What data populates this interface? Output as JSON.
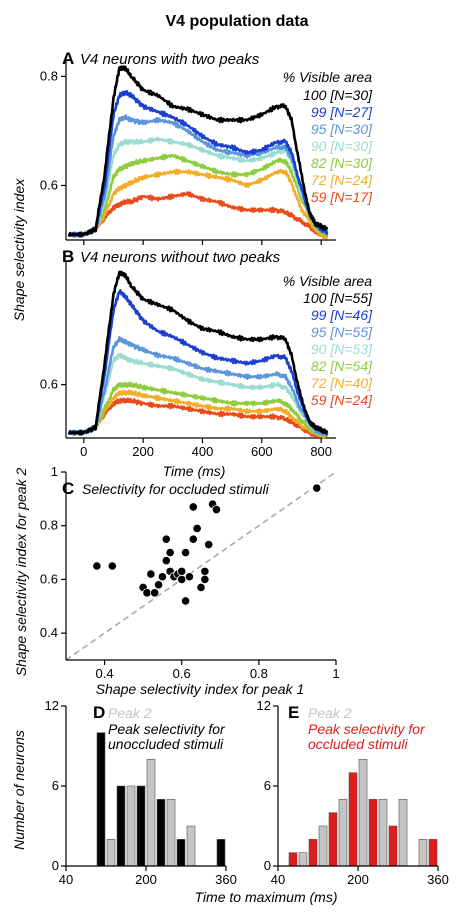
{
  "figure_title": "V4 population data",
  "chart_data": [
    {
      "id": "A",
      "type": "line",
      "panel_letter": "A",
      "title": "V4 neurons with two peaks",
      "ylabel": "Shape selectivity index",
      "xlim": [
        -60,
        850
      ],
      "ylim": [
        0.5,
        0.83
      ],
      "yticks": [
        0.6,
        0.8
      ],
      "xticks": [
        0,
        200,
        400,
        600,
        800
      ],
      "legend_title": "% Visible area",
      "legend_placement": "top-right",
      "series": [
        {
          "name": "100 [N=30]",
          "color": "#000000",
          "x": [
            -50,
            0,
            40,
            70,
            100,
            120,
            140,
            160,
            200,
            250,
            300,
            350,
            400,
            450,
            500,
            550,
            600,
            650,
            680,
            700,
            730,
            760,
            780,
            800,
            820
          ],
          "y": [
            0.51,
            0.51,
            0.52,
            0.62,
            0.76,
            0.815,
            0.815,
            0.8,
            0.775,
            0.765,
            0.745,
            0.74,
            0.73,
            0.72,
            0.72,
            0.72,
            0.73,
            0.745,
            0.745,
            0.72,
            0.63,
            0.55,
            0.53,
            0.525,
            0.52
          ]
        },
        {
          "name": "99 [N=27]",
          "color": "#1a3fd1",
          "x": [
            -50,
            0,
            40,
            70,
            100,
            120,
            140,
            160,
            200,
            250,
            300,
            350,
            400,
            450,
            500,
            550,
            600,
            650,
            680,
            700,
            730,
            760,
            780,
            800,
            820
          ],
          "y": [
            0.51,
            0.51,
            0.52,
            0.6,
            0.73,
            0.765,
            0.77,
            0.765,
            0.745,
            0.735,
            0.725,
            0.71,
            0.69,
            0.675,
            0.67,
            0.66,
            0.665,
            0.68,
            0.68,
            0.66,
            0.6,
            0.55,
            0.53,
            0.52,
            0.515
          ]
        },
        {
          "name": "95 [N=30]",
          "color": "#5d95dd",
          "x": [
            -50,
            0,
            40,
            70,
            100,
            120,
            140,
            160,
            200,
            250,
            300,
            350,
            400,
            450,
            500,
            550,
            600,
            650,
            680,
            700,
            730,
            760,
            780,
            800,
            820
          ],
          "y": [
            0.51,
            0.51,
            0.52,
            0.58,
            0.69,
            0.72,
            0.725,
            0.72,
            0.715,
            0.72,
            0.715,
            0.7,
            0.68,
            0.665,
            0.66,
            0.655,
            0.66,
            0.67,
            0.67,
            0.65,
            0.6,
            0.55,
            0.53,
            0.52,
            0.515
          ]
        },
        {
          "name": "90 [N=30]",
          "color": "#9cdcd0",
          "x": [
            -50,
            0,
            40,
            70,
            100,
            120,
            140,
            160,
            200,
            250,
            300,
            350,
            400,
            450,
            500,
            550,
            600,
            650,
            680,
            700,
            730,
            760,
            780,
            800,
            820
          ],
          "y": [
            0.51,
            0.51,
            0.52,
            0.57,
            0.655,
            0.675,
            0.68,
            0.68,
            0.68,
            0.685,
            0.68,
            0.675,
            0.665,
            0.655,
            0.65,
            0.645,
            0.65,
            0.66,
            0.665,
            0.645,
            0.59,
            0.55,
            0.53,
            0.52,
            0.515
          ]
        },
        {
          "name": "82 [N=30]",
          "color": "#8fcc40",
          "x": [
            -50,
            0,
            40,
            70,
            100,
            120,
            140,
            160,
            200,
            250,
            300,
            350,
            400,
            450,
            500,
            550,
            600,
            650,
            680,
            700,
            730,
            760,
            780,
            800,
            820
          ],
          "y": [
            0.51,
            0.51,
            0.52,
            0.555,
            0.615,
            0.63,
            0.635,
            0.64,
            0.645,
            0.65,
            0.655,
            0.645,
            0.635,
            0.625,
            0.62,
            0.62,
            0.63,
            0.645,
            0.645,
            0.625,
            0.58,
            0.545,
            0.525,
            0.515,
            0.51
          ]
        },
        {
          "name": "72 [N=24]",
          "color": "#f2ad2a",
          "x": [
            -50,
            0,
            40,
            70,
            100,
            120,
            140,
            160,
            200,
            250,
            300,
            350,
            400,
            450,
            500,
            550,
            600,
            650,
            680,
            700,
            730,
            760,
            780,
            800,
            820
          ],
          "y": [
            0.51,
            0.51,
            0.52,
            0.545,
            0.585,
            0.595,
            0.6,
            0.605,
            0.615,
            0.62,
            0.625,
            0.625,
            0.62,
            0.615,
            0.61,
            0.6,
            0.61,
            0.625,
            0.625,
            0.605,
            0.56,
            0.535,
            0.52,
            0.51,
            0.505
          ]
        },
        {
          "name": "59 [N=17]",
          "color": "#ea4b1c",
          "x": [
            -50,
            0,
            40,
            70,
            100,
            120,
            140,
            160,
            200,
            250,
            300,
            350,
            400,
            450,
            500,
            550,
            600,
            650,
            680,
            700,
            730,
            760,
            780,
            800,
            820
          ],
          "y": [
            0.51,
            0.51,
            0.52,
            0.54,
            0.56,
            0.565,
            0.57,
            0.57,
            0.58,
            0.575,
            0.58,
            0.585,
            0.575,
            0.57,
            0.56,
            0.555,
            0.555,
            0.555,
            0.55,
            0.545,
            0.535,
            0.525,
            0.515,
            0.51,
            0.505
          ]
        }
      ]
    },
    {
      "id": "B",
      "type": "line",
      "panel_letter": "B",
      "title": "V4 neurons without two peaks",
      "xlabel": "Time (ms)",
      "xlim": [
        -60,
        850
      ],
      "ylim": [
        0.5,
        0.83
      ],
      "yticks": [
        0.6
      ],
      "xticks": [
        0,
        200,
        400,
        600,
        800
      ],
      "legend_title": "% Visible area",
      "legend_placement": "top-right",
      "series": [
        {
          "name": "100 [N=55]",
          "color": "#000000",
          "x": [
            -50,
            0,
            40,
            70,
            100,
            120,
            140,
            160,
            200,
            250,
            300,
            350,
            400,
            450,
            500,
            550,
            600,
            650,
            680,
            700,
            730,
            760,
            780,
            800,
            820
          ],
          "y": [
            0.51,
            0.51,
            0.52,
            0.64,
            0.77,
            0.81,
            0.805,
            0.785,
            0.76,
            0.75,
            0.74,
            0.72,
            0.705,
            0.7,
            0.69,
            0.685,
            0.685,
            0.69,
            0.685,
            0.655,
            0.58,
            0.53,
            0.52,
            0.515,
            0.51
          ]
        },
        {
          "name": "99 [N=46]",
          "color": "#1a3fd1",
          "x": [
            -50,
            0,
            40,
            70,
            100,
            120,
            140,
            160,
            200,
            250,
            300,
            350,
            400,
            450,
            500,
            550,
            600,
            650,
            680,
            700,
            730,
            760,
            780,
            800,
            820
          ],
          "y": [
            0.51,
            0.51,
            0.52,
            0.62,
            0.74,
            0.775,
            0.765,
            0.75,
            0.72,
            0.7,
            0.69,
            0.675,
            0.66,
            0.65,
            0.645,
            0.64,
            0.645,
            0.655,
            0.65,
            0.625,
            0.57,
            0.53,
            0.52,
            0.515,
            0.51
          ]
        },
        {
          "name": "95 [N=55]",
          "color": "#5d95dd",
          "x": [
            -50,
            0,
            40,
            70,
            100,
            120,
            140,
            160,
            200,
            250,
            300,
            350,
            400,
            450,
            500,
            550,
            600,
            650,
            680,
            700,
            730,
            760,
            780,
            800,
            820
          ],
          "y": [
            0.51,
            0.51,
            0.52,
            0.59,
            0.67,
            0.685,
            0.68,
            0.675,
            0.665,
            0.655,
            0.65,
            0.64,
            0.63,
            0.625,
            0.62,
            0.615,
            0.615,
            0.62,
            0.615,
            0.595,
            0.555,
            0.53,
            0.515,
            0.51,
            0.51
          ]
        },
        {
          "name": "90 [N=53]",
          "color": "#9cdcd0",
          "x": [
            -50,
            0,
            40,
            70,
            100,
            120,
            140,
            160,
            200,
            250,
            300,
            350,
            400,
            450,
            500,
            550,
            600,
            650,
            680,
            700,
            730,
            760,
            780,
            800,
            820
          ],
          "y": [
            0.51,
            0.51,
            0.52,
            0.58,
            0.645,
            0.655,
            0.65,
            0.645,
            0.64,
            0.635,
            0.63,
            0.62,
            0.61,
            0.605,
            0.6,
            0.595,
            0.595,
            0.6,
            0.595,
            0.58,
            0.55,
            0.525,
            0.515,
            0.51,
            0.51
          ]
        },
        {
          "name": "82 [N=54]",
          "color": "#8fcc40",
          "x": [
            -50,
            0,
            40,
            70,
            100,
            120,
            140,
            160,
            200,
            250,
            300,
            350,
            400,
            450,
            500,
            550,
            600,
            650,
            680,
            700,
            730,
            760,
            780,
            800,
            820
          ],
          "y": [
            0.51,
            0.51,
            0.52,
            0.555,
            0.59,
            0.6,
            0.6,
            0.6,
            0.595,
            0.59,
            0.585,
            0.58,
            0.575,
            0.57,
            0.565,
            0.565,
            0.565,
            0.57,
            0.565,
            0.555,
            0.535,
            0.52,
            0.51,
            0.51,
            0.505
          ]
        },
        {
          "name": "72 [N=40]",
          "color": "#f2ad2a",
          "x": [
            -50,
            0,
            40,
            70,
            100,
            120,
            140,
            160,
            200,
            250,
            300,
            350,
            400,
            450,
            500,
            550,
            600,
            650,
            680,
            700,
            730,
            760,
            780,
            800,
            820
          ],
          "y": [
            0.51,
            0.51,
            0.52,
            0.55,
            0.575,
            0.585,
            0.585,
            0.585,
            0.58,
            0.575,
            0.57,
            0.565,
            0.56,
            0.555,
            0.555,
            0.55,
            0.55,
            0.555,
            0.55,
            0.54,
            0.525,
            0.515,
            0.51,
            0.505,
            0.505
          ]
        },
        {
          "name": "59 [N=24]",
          "color": "#ea4b1c",
          "x": [
            -50,
            0,
            40,
            70,
            100,
            120,
            140,
            160,
            200,
            250,
            300,
            350,
            400,
            450,
            500,
            550,
            600,
            650,
            680,
            700,
            730,
            760,
            780,
            800,
            820
          ],
          "y": [
            0.51,
            0.51,
            0.52,
            0.545,
            0.565,
            0.57,
            0.57,
            0.57,
            0.565,
            0.56,
            0.56,
            0.555,
            0.55,
            0.545,
            0.545,
            0.54,
            0.54,
            0.54,
            0.535,
            0.53,
            0.52,
            0.51,
            0.505,
            0.505,
            0.505
          ]
        }
      ]
    },
    {
      "id": "C",
      "type": "scatter",
      "panel_letter": "C",
      "title": "Selectivity for occluded stimuli",
      "xlabel": "Shape selectivity index for peak 1",
      "ylabel": "Shape selectivity index for peak 2",
      "xlim": [
        0.3,
        1.0
      ],
      "ylim": [
        0.3,
        1.0
      ],
      "xticks": [
        0.4,
        0.6,
        0.8,
        1.0
      ],
      "yticks": [
        0.4,
        0.6,
        0.8,
        1.0
      ],
      "diagonal": "y = x",
      "points": [
        [
          0.38,
          0.65
        ],
        [
          0.42,
          0.65
        ],
        [
          0.5,
          0.57
        ],
        [
          0.51,
          0.55
        ],
        [
          0.53,
          0.55
        ],
        [
          0.52,
          0.62
        ],
        [
          0.54,
          0.58
        ],
        [
          0.55,
          0.61
        ],
        [
          0.56,
          0.67
        ],
        [
          0.56,
          0.75
        ],
        [
          0.57,
          0.7
        ],
        [
          0.57,
          0.63
        ],
        [
          0.58,
          0.61
        ],
        [
          0.59,
          0.62
        ],
        [
          0.6,
          0.6
        ],
        [
          0.6,
          0.63
        ],
        [
          0.61,
          0.52
        ],
        [
          0.62,
          0.61
        ],
        [
          0.61,
          0.7
        ],
        [
          0.63,
          0.75
        ],
        [
          0.63,
          0.87
        ],
        [
          0.64,
          0.79
        ],
        [
          0.65,
          0.57
        ],
        [
          0.66,
          0.63
        ],
        [
          0.66,
          0.6
        ],
        [
          0.67,
          0.73
        ],
        [
          0.68,
          0.88
        ],
        [
          0.69,
          0.86
        ],
        [
          0.95,
          0.94
        ]
      ]
    },
    {
      "id": "D",
      "type": "bar",
      "panel_letter": "D",
      "ylabel": "Number of neurons",
      "xlim": [
        40,
        360
      ],
      "ylim": [
        0,
        12
      ],
      "xticks": [
        40,
        200,
        360
      ],
      "yticks": [
        0,
        6,
        12
      ],
      "bin_width": 20,
      "legend_placement": "top-right",
      "series": [
        {
          "name": "Peak 2",
          "color": "#c4c4c4",
          "bin_centers": [
            130,
            170,
            210,
            250,
            290
          ],
          "values": [
            2,
            6,
            8,
            5,
            3
          ]
        },
        {
          "name": "Peak selectivity for unoccluded stimuli",
          "color": "#000000",
          "bin_centers": [
            110,
            150,
            190,
            230,
            270,
            350
          ],
          "values": [
            10,
            6,
            6,
            5,
            2,
            2
          ]
        }
      ]
    },
    {
      "id": "E",
      "type": "bar",
      "panel_letter": "E",
      "xlim": [
        40,
        360
      ],
      "ylim": [
        0,
        12
      ],
      "xticks": [
        40,
        200,
        360
      ],
      "yticks": [
        0,
        6,
        12
      ],
      "bin_width": 20,
      "legend_placement": "top-right",
      "series": [
        {
          "name": "Peak 2",
          "color": "#c4c4c4",
          "bin_centers": [
            90,
            130,
            170,
            210,
            250,
            290,
            330
          ],
          "values": [
            1,
            3,
            5,
            8,
            5,
            5,
            2
          ]
        },
        {
          "name": "Peak selectivity for occluded stimuli",
          "color": "#e01b1b",
          "bin_centers": [
            70,
            110,
            150,
            190,
            230,
            270,
            350
          ],
          "values": [
            1,
            2,
            4,
            7,
            5,
            3,
            2
          ]
        }
      ]
    }
  ],
  "shared_xlabel_DE": "Time to maximum (ms)"
}
